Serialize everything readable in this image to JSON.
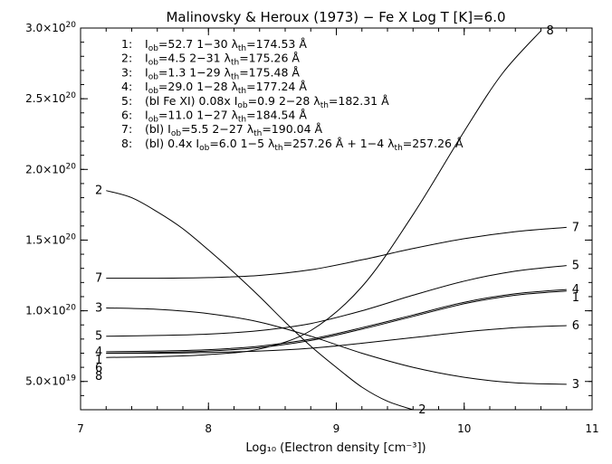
{
  "chart_data": {
    "type": "line",
    "title": "Malinovsky & Heroux (1973) − Fe X Log T [K]=6.0",
    "xlabel": "Log₁₀ (Electron density [cm⁻³])",
    "ylabel": "",
    "xlim": [
      7,
      11
    ],
    "ylim": [
      3e+19,
      3e+20
    ],
    "xticks": [
      "7",
      "8",
      "9",
      "10",
      "11"
    ],
    "yticks": [
      {
        "value": 5e+19,
        "mant": "5.0×10",
        "exp": "19"
      },
      {
        "value": 1e+20,
        "mant": "1.0×10",
        "exp": "20"
      },
      {
        "value": 1.5e+20,
        "mant": "1.5×10",
        "exp": "20"
      },
      {
        "value": 2e+20,
        "mant": "2.0×10",
        "exp": "20"
      },
      {
        "value": 2.5e+20,
        "mant": "2.5×10",
        "exp": "20"
      },
      {
        "value": 3e+20,
        "mant": "3.0×10",
        "exp": "20"
      }
    ],
    "legend": [
      {
        "num": "1:",
        "parts": [
          [
            "t",
            "I"
          ],
          [
            "s",
            "ob"
          ],
          [
            "t",
            "=52.7 1−30 λ"
          ],
          [
            "s",
            "th"
          ],
          [
            "t",
            "=174.53 Å"
          ]
        ]
      },
      {
        "num": "2:",
        "parts": [
          [
            "t",
            "I"
          ],
          [
            "s",
            "ob"
          ],
          [
            "t",
            "=4.5 2−31 λ"
          ],
          [
            "s",
            "th"
          ],
          [
            "t",
            "=175.26 Å"
          ]
        ]
      },
      {
        "num": "3:",
        "parts": [
          [
            "t",
            "I"
          ],
          [
            "s",
            "ob"
          ],
          [
            "t",
            "=1.3 1−29 λ"
          ],
          [
            "s",
            "th"
          ],
          [
            "t",
            "=175.48 Å"
          ]
        ]
      },
      {
        "num": "4:",
        "parts": [
          [
            "t",
            "I"
          ],
          [
            "s",
            "ob"
          ],
          [
            "t",
            "=29.0 1−28 λ"
          ],
          [
            "s",
            "th"
          ],
          [
            "t",
            "=177.24 Å"
          ]
        ]
      },
      {
        "num": "5:",
        "parts": [
          [
            "t",
            "(bl Fe XI) 0.08x I"
          ],
          [
            "s",
            "ob"
          ],
          [
            "t",
            "=0.9 2−28 λ"
          ],
          [
            "s",
            "th"
          ],
          [
            "t",
            "=182.31 Å"
          ]
        ]
      },
      {
        "num": "6:",
        "parts": [
          [
            "t",
            "I"
          ],
          [
            "s",
            "ob"
          ],
          [
            "t",
            "=11.0 1−27 λ"
          ],
          [
            "s",
            "th"
          ],
          [
            "t",
            "=184.54 Å"
          ]
        ]
      },
      {
        "num": "7:",
        "parts": [
          [
            "t",
            "(bl) I"
          ],
          [
            "s",
            "ob"
          ],
          [
            "t",
            "=5.5 2−27 λ"
          ],
          [
            "s",
            "th"
          ],
          [
            "t",
            "=190.04 Å"
          ]
        ]
      },
      {
        "num": "8:",
        "parts": [
          [
            "t",
            "(bl) 0.4x I"
          ],
          [
            "s",
            "ob"
          ],
          [
            "t",
            "=6.0  1−5 λ"
          ],
          [
            "s",
            "th"
          ],
          [
            "t",
            "=257.26 Å + 1−4 λ"
          ],
          [
            "s",
            "th"
          ],
          [
            "t",
            "=257.26 Å"
          ]
        ]
      }
    ],
    "series": [
      {
        "name": "1",
        "x": [
          7.2,
          7.6,
          8.0,
          8.4,
          8.8,
          9.2,
          9.6,
          10.0,
          10.4,
          10.8
        ],
        "y": [
          7e+19,
          7.05e+19,
          7.15e+19,
          7.4e+19,
          7.9e+19,
          8.7e+19,
          9.6e+19,
          1.05e+20,
          1.11e+20,
          1.14e+20
        ]
      },
      {
        "name": "2",
        "x": [
          7.2,
          7.4,
          7.6,
          7.8,
          8.0,
          8.2,
          8.4,
          8.6,
          8.8,
          9.0,
          9.2,
          9.4,
          9.6
        ],
        "y": [
          1.85e+20,
          1.8e+20,
          1.7e+20,
          1.58e+20,
          1.43e+20,
          1.27e+20,
          1.1e+20,
          9.2e+19,
          7.5e+19,
          6e+19,
          4.6e+19,
          3.6e+19,
          3e+19
        ]
      },
      {
        "name": "3",
        "x": [
          7.2,
          7.6,
          8.0,
          8.4,
          8.8,
          9.2,
          9.6,
          10.0,
          10.4,
          10.8
        ],
        "y": [
          1.02e+20,
          1.01e+20,
          9.8e+19,
          9.2e+19,
          8.2e+19,
          7e+19,
          6e+19,
          5.3e+19,
          4.9e+19,
          4.8e+19
        ]
      },
      {
        "name": "4",
        "x": [
          7.2,
          7.6,
          8.0,
          8.4,
          8.8,
          9.2,
          9.6,
          10.0,
          10.4,
          10.8
        ],
        "y": [
          7.1e+19,
          7.15e+19,
          7.25e+19,
          7.5e+19,
          8e+19,
          8.8e+19,
          9.7e+19,
          1.06e+20,
          1.12e+20,
          1.15e+20
        ]
      },
      {
        "name": "5",
        "x": [
          7.2,
          7.6,
          8.0,
          8.4,
          8.8,
          9.2,
          9.6,
          10.0,
          10.4,
          10.8
        ],
        "y": [
          8.2e+19,
          8.25e+19,
          8.35e+19,
          8.6e+19,
          9.1e+19,
          1e+20,
          1.11e+20,
          1.21e+20,
          1.28e+20,
          1.32e+20
        ]
      },
      {
        "name": "6",
        "x": [
          7.2,
          7.6,
          8.0,
          8.4,
          8.8,
          9.2,
          9.6,
          10.0,
          10.4,
          10.8
        ],
        "y": [
          7e+19,
          7e+19,
          7.05e+19,
          7.15e+19,
          7.35e+19,
          7.7e+19,
          8.1e+19,
          8.5e+19,
          8.8e+19,
          8.95e+19
        ]
      },
      {
        "name": "7",
        "x": [
          7.2,
          7.6,
          8.0,
          8.4,
          8.8,
          9.2,
          9.6,
          10.0,
          10.4,
          10.8
        ],
        "y": [
          1.23e+20,
          1.23e+20,
          1.235e+20,
          1.25e+20,
          1.29e+20,
          1.36e+20,
          1.44e+20,
          1.51e+20,
          1.56e+20,
          1.59e+20
        ]
      },
      {
        "name": "8",
        "x": [
          7.2,
          7.6,
          8.0,
          8.4,
          8.8,
          9.2,
          9.6,
          10.0,
          10.3,
          10.6
        ],
        "y": [
          6.7e+19,
          6.75e+19,
          6.9e+19,
          7.3e+19,
          8.6e+19,
          1.17e+20,
          1.68e+20,
          2.27e+20,
          2.68e+20,
          2.98e+20
        ]
      }
    ],
    "curve_labels": {
      "left": [
        {
          "text": "2",
          "series": "2"
        },
        {
          "text": "7",
          "series": "7"
        },
        {
          "text": "3",
          "series": "3"
        },
        {
          "text": "5",
          "series": "5"
        },
        {
          "text": "1",
          "series": "1"
        },
        {
          "text": "4",
          "series": "4"
        },
        {
          "text": "6",
          "series": "6"
        },
        {
          "text": "8",
          "series": "8"
        }
      ],
      "right": [
        {
          "text": "8",
          "series": "8"
        },
        {
          "text": "7",
          "series": "7"
        },
        {
          "text": "5",
          "series": "5"
        },
        {
          "text": "1",
          "series": "1"
        },
        {
          "text": "4",
          "series": "4"
        },
        {
          "text": "6",
          "series": "6"
        },
        {
          "text": "3",
          "series": "3"
        },
        {
          "text": "2",
          "series": "2"
        }
      ]
    }
  }
}
